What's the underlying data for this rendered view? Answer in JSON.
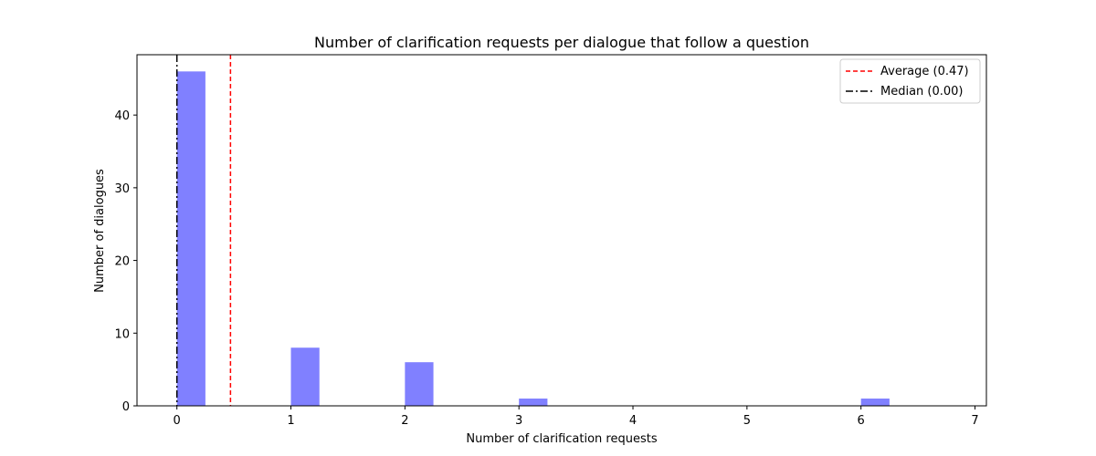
{
  "chart_data": {
    "type": "bar",
    "title": "Number of clarification requests per dialogue that follow a question",
    "xlabel": "Number of clarification requests",
    "ylabel": "Number of dialogues",
    "xlim": [
      -0.35,
      7.1
    ],
    "ylim": [
      0,
      48.3
    ],
    "xticks": [
      0,
      1,
      2,
      3,
      4,
      5,
      6,
      7
    ],
    "yticks": [
      0,
      10,
      20,
      30,
      40
    ],
    "bar_width": 0.25,
    "bars": [
      {
        "x": 0,
        "value": 46
      },
      {
        "x": 1,
        "value": 8
      },
      {
        "x": 2,
        "value": 6
      },
      {
        "x": 3,
        "value": 1
      },
      {
        "x": 6,
        "value": 1
      }
    ],
    "bar_color": "#8080ff",
    "reference_lines": [
      {
        "name": "Average (0.47)",
        "x": 0.47,
        "color": "#ff0000",
        "style": "dashed"
      },
      {
        "name": "Median (0.00)",
        "x": 0,
        "color": "#000000",
        "style": "dashdot"
      }
    ],
    "legend_position": "top-right",
    "grid": false
  }
}
